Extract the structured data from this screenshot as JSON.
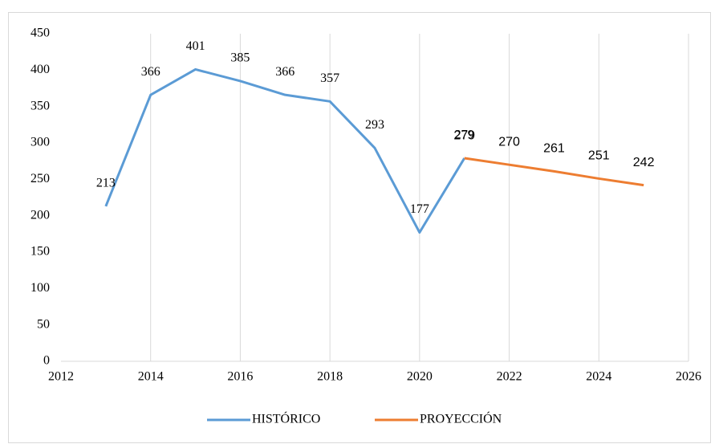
{
  "chart_data": {
    "type": "line",
    "series": [
      {
        "name": "HISTÓRICO",
        "color": "#5b9bd5",
        "x": [
          2013,
          2014,
          2015,
          2016,
          2017,
          2018,
          2019,
          2020,
          2021
        ],
        "values": [
          213,
          366,
          401,
          385,
          366,
          357,
          293,
          177,
          279
        ]
      },
      {
        "name": "PROYECCIÓN",
        "color": "#ed7d31",
        "x": [
          2021,
          2022,
          2023,
          2024,
          2025
        ],
        "values": [
          279,
          270,
          261,
          251,
          242
        ]
      }
    ],
    "xlim": [
      2012,
      2026
    ],
    "xticks": [
      2012,
      2014,
      2016,
      2018,
      2020,
      2022,
      2024,
      2026
    ],
    "ylim": [
      0,
      450
    ],
    "yticks": [
      0,
      50,
      100,
      150,
      200,
      250,
      300,
      350,
      400,
      450
    ],
    "grid": true,
    "legend": "bottom"
  }
}
